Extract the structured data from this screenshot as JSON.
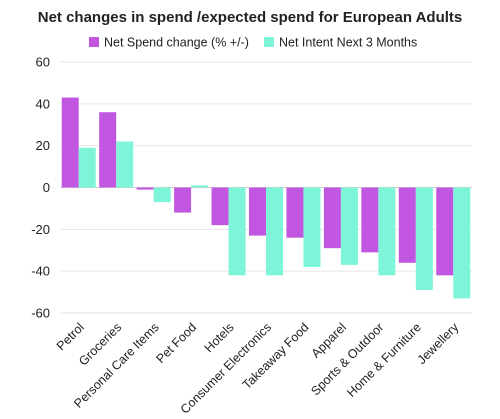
{
  "chart_data": {
    "type": "bar",
    "title": "Net changes in spend /expected spend for European Adults",
    "xlabel": "",
    "ylabel": "",
    "ylim": [
      -60,
      60
    ],
    "yticks": [
      60,
      40,
      20,
      0,
      -20,
      -40,
      -60
    ],
    "grid": true,
    "legend_position": "top",
    "categories": [
      "Petrol",
      "Groceries",
      "Personal Care Items",
      "Pet Food",
      "Hotels",
      "Consumer Electronics",
      "Takeaway Food",
      "Apparel",
      "Sports & Outdoor",
      "Home & Furniture",
      "Jewellery"
    ],
    "series": [
      {
        "name": "Net Spend change (% +/-)",
        "color": "#c157e0",
        "values": [
          43,
          36,
          -1,
          -12,
          -18,
          -23,
          -24,
          -29,
          -31,
          -36,
          -42
        ]
      },
      {
        "name": "Net Intent Next 3 Months",
        "color": "#7ef5d8",
        "values": [
          19,
          22,
          -7,
          1,
          -42,
          -42,
          -38,
          -37,
          -42,
          -49,
          -53
        ]
      }
    ]
  }
}
